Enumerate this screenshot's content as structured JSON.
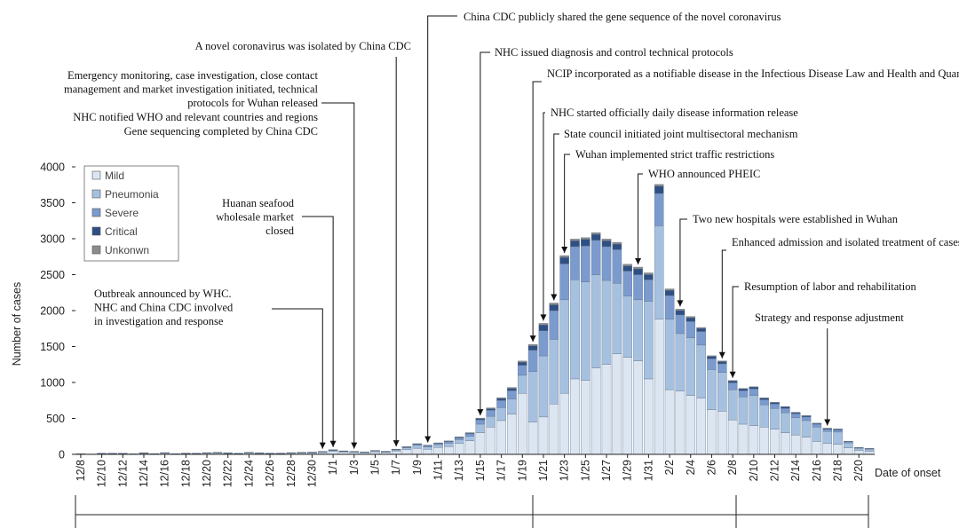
{
  "chart_data": {
    "type": "bar",
    "stacked": true,
    "ylabel": "Number of cases",
    "xlabel": "Date of onset",
    "ylim": [
      0,
      4000
    ],
    "yticks": [
      0,
      500,
      1000,
      1500,
      2000,
      2500,
      3000,
      3500,
      4000
    ],
    "categories": [
      "12/8",
      "12/9",
      "12/10",
      "12/11",
      "12/12",
      "12/13",
      "12/14",
      "12/15",
      "12/16",
      "12/17",
      "12/18",
      "12/19",
      "12/20",
      "12/21",
      "12/22",
      "12/23",
      "12/24",
      "12/25",
      "12/26",
      "12/27",
      "12/28",
      "12/29",
      "12/30",
      "12/31",
      "1/1",
      "1/2",
      "1/3",
      "1/4",
      "1/5",
      "1/6",
      "1/7",
      "1/8",
      "1/9",
      "1/10",
      "1/11",
      "1/12",
      "1/13",
      "1/14",
      "1/15",
      "1/16",
      "1/17",
      "1/18",
      "1/19",
      "1/20",
      "1/21",
      "1/22",
      "1/23",
      "1/24",
      "1/25",
      "1/26",
      "1/27",
      "1/28",
      "1/29",
      "1/30",
      "1/31",
      "2/1",
      "2/2",
      "2/3",
      "2/4",
      "2/5",
      "2/6",
      "2/7",
      "2/8",
      "2/9",
      "2/10",
      "2/11",
      "2/12",
      "2/13",
      "2/14",
      "2/15",
      "2/16",
      "2/17",
      "2/18",
      "2/19",
      "2/20",
      "2/21"
    ],
    "tick_labels": [
      "12/8",
      "12/10",
      "12/12",
      "12/14",
      "12/16",
      "12/18",
      "12/20",
      "12/22",
      "12/24",
      "12/26",
      "12/28",
      "12/30",
      "1/1",
      "1/3",
      "1/5",
      "1/7",
      "1/9",
      "1/11",
      "1/13",
      "1/15",
      "1/17",
      "1/19",
      "1/21",
      "1/23",
      "1/25",
      "1/27",
      "1/29",
      "1/31",
      "2/2",
      "2/4",
      "2/6",
      "2/8",
      "2/10",
      "2/12",
      "2/14",
      "2/16",
      "2/18",
      "2/20"
    ],
    "series": [
      {
        "name": "Mild",
        "color": "#dce6f2",
        "values": [
          5,
          3,
          8,
          8,
          8,
          4,
          12,
          6,
          14,
          6,
          10,
          8,
          14,
          16,
          12,
          8,
          16,
          12,
          10,
          10,
          14,
          16,
          18,
          24,
          40,
          30,
          26,
          20,
          34,
          26,
          45,
          65,
          85,
          70,
          95,
          110,
          150,
          190,
          300,
          380,
          470,
          560,
          850,
          450,
          520,
          700,
          850,
          1050,
          1030,
          1200,
          1250,
          1400,
          1350,
          1300,
          1050,
          1880,
          900,
          880,
          820,
          780,
          620,
          600,
          480,
          420,
          400,
          380,
          350,
          300,
          270,
          240,
          180,
          150,
          140,
          90,
          55,
          40
        ]
      },
      {
        "name": "Pneumonia",
        "color": "#a6c1e0",
        "values": [
          2,
          1,
          3,
          3,
          3,
          2,
          5,
          3,
          5,
          2,
          4,
          3,
          5,
          6,
          5,
          3,
          6,
          5,
          4,
          4,
          5,
          6,
          7,
          9,
          14,
          10,
          9,
          8,
          12,
          10,
          16,
          25,
          40,
          35,
          40,
          45,
          55,
          60,
          120,
          150,
          180,
          210,
          250,
          700,
          850,
          900,
          1300,
          1380,
          1370,
          1300,
          1170,
          980,
          850,
          850,
          1080,
          1300,
          980,
          800,
          800,
          740,
          560,
          540,
          420,
          380,
          420,
          310,
          290,
          280,
          240,
          230,
          200,
          170,
          170,
          70,
          30,
          30
        ]
      },
      {
        "name": "Severe",
        "color": "#7b9bcf",
        "values": [
          1,
          1,
          2,
          2,
          2,
          1,
          3,
          1,
          3,
          1,
          2,
          2,
          3,
          3,
          3,
          2,
          3,
          3,
          2,
          2,
          3,
          3,
          3,
          5,
          6,
          5,
          4,
          4,
          5,
          4,
          7,
          10,
          15,
          15,
          15,
          20,
          25,
          35,
          60,
          85,
          100,
          115,
          140,
          300,
          350,
          400,
          500,
          460,
          500,
          480,
          470,
          470,
          350,
          350,
          300,
          450,
          330,
          260,
          230,
          190,
          150,
          120,
          95,
          85,
          90,
          70,
          60,
          60,
          55,
          50,
          40,
          30,
          30,
          15,
          8,
          8
        ]
      },
      {
        "name": "Critical",
        "color": "#2e4f83",
        "values": [
          0,
          0,
          1,
          1,
          1,
          0,
          1,
          0,
          1,
          0,
          1,
          1,
          1,
          1,
          1,
          1,
          1,
          1,
          1,
          1,
          1,
          1,
          2,
          2,
          3,
          2,
          2,
          2,
          2,
          2,
          3,
          4,
          5,
          5,
          5,
          7,
          8,
          10,
          15,
          20,
          25,
          30,
          40,
          60,
          80,
          80,
          90,
          80,
          90,
          80,
          80,
          75,
          70,
          80,
          70,
          100,
          70,
          60,
          50,
          40,
          30,
          30,
          25,
          25,
          25,
          20,
          20,
          20,
          15,
          15,
          10,
          10,
          10,
          5,
          3,
          3
        ]
      },
      {
        "name": "Unkonwn",
        "color": "#8c8c8c",
        "values": [
          0,
          0,
          0,
          0,
          0,
          0,
          1,
          0,
          1,
          0,
          0,
          0,
          1,
          1,
          0,
          0,
          1,
          1,
          0,
          0,
          1,
          1,
          1,
          2,
          2,
          2,
          1,
          1,
          2,
          1,
          2,
          3,
          4,
          3,
          5,
          5,
          6,
          7,
          10,
          12,
          14,
          16,
          18,
          20,
          22,
          25,
          25,
          25,
          25,
          25,
          25,
          25,
          25,
          25,
          25,
          25,
          22,
          20,
          18,
          15,
          12,
          10,
          8,
          7,
          6,
          6,
          5,
          5,
          5,
          5,
          4,
          4,
          4,
          2,
          1,
          1
        ]
      }
    ],
    "legend_position": "top-left",
    "grid": false,
    "annotations": [
      {
        "text": "A novel coronavirus was isolated by China CDC",
        "target": "1/7"
      },
      {
        "text": "China CDC publicly shared the gene sequence of the novel coronavirus",
        "target": "1/10"
      },
      {
        "text": "Emergency monitoring, case investigation, close contact management and market investigation initiated, technical protocols for Wuhan released",
        "target": "1/3"
      },
      {
        "text": "NHC notified WHO and relevant countries and regions",
        "target": "1/3"
      },
      {
        "text": "Gene sequencing completed by China CDC",
        "target": "1/3"
      },
      {
        "text": "Huanan seafood wholesale market closed",
        "target": "1/1"
      },
      {
        "text": "Outbreak announced by WHC. NHC and China CDC involved in investigation and response",
        "target": "12/31"
      },
      {
        "text": "NHC issued diagnosis and control technical protocols",
        "target": "1/15"
      },
      {
        "text": "NCIP incorporated as a notifiable disease in the Infectious Disease Law and Health and Quarantine Law in China",
        "target": "1/20"
      },
      {
        "text": "NHC started officially daily disease information release",
        "target": "1/21"
      },
      {
        "text": "State council initiated joint multisectoral mechanism",
        "target": "1/22"
      },
      {
        "text": "Wuhan implemented strict traffic restrictions",
        "target": "1/23"
      },
      {
        "text": "WHO announced PHEIC",
        "target": "1/30"
      },
      {
        "text": "Two new hospitals were established in Wuhan",
        "target": "2/3"
      },
      {
        "text": "Enhanced admission and isolated treatment of cases in Hubei",
        "target": "2/7"
      },
      {
        "text": "Resumption of labor and rehabilitation",
        "target": "2/8"
      },
      {
        "text": "Strategy and response adjustment",
        "target": "2/17"
      }
    ]
  }
}
